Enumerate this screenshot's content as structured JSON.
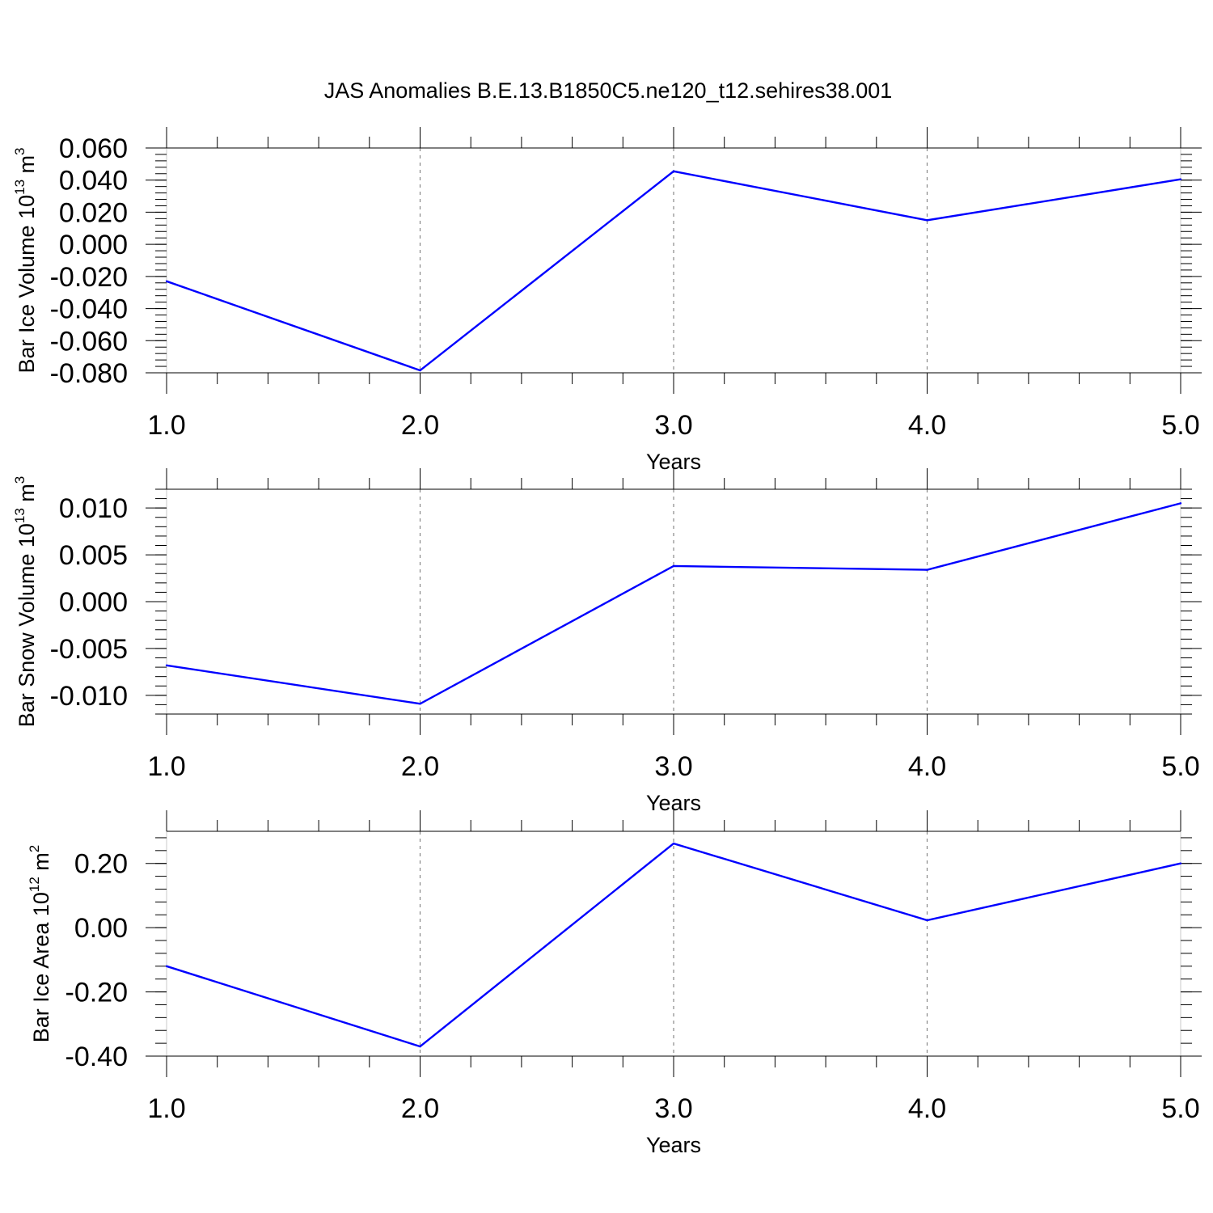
{
  "title": "JAS Anomalies B.E.13.B1850C5.ne120_t12.sehires38.001",
  "chart_data": [
    {
      "type": "line",
      "xlabel": "Years",
      "ylabel": {
        "text": "Bar Ice Volume 10",
        "exp": "13",
        "unit": " m",
        "unit_exp": "3"
      },
      "x": [
        1.0,
        2.0,
        3.0,
        4.0,
        5.0
      ],
      "x_ticks": [
        "1.0",
        "2.0",
        "3.0",
        "4.0",
        "5.0"
      ],
      "xlim": [
        1.0,
        5.0
      ],
      "ylim": [
        -0.08,
        0.06
      ],
      "y_ticks": [
        0.06,
        0.04,
        0.02,
        0.0,
        -0.02,
        -0.04,
        -0.06,
        -0.08
      ],
      "y_tick_labels": [
        "0.060",
        "0.040",
        "0.020",
        "0.000",
        "-0.020",
        "-0.040",
        "-0.060",
        "-0.080"
      ],
      "series": [
        {
          "values": [
            -0.023,
            -0.0785,
            0.0455,
            0.015,
            0.0405
          ],
          "color": "#0000ff"
        }
      ],
      "vertical_gridlines": "dashed at x ticks"
    },
    {
      "type": "line",
      "xlabel": "Years",
      "ylabel": {
        "text": "Bar Snow Volume 10",
        "exp": "13",
        "unit": " m",
        "unit_exp": "3"
      },
      "x": [
        1.0,
        2.0,
        3.0,
        4.0,
        5.0
      ],
      "x_ticks": [
        "1.0",
        "2.0",
        "3.0",
        "4.0",
        "5.0"
      ],
      "xlim": [
        1.0,
        5.0
      ],
      "ylim": [
        -0.012,
        0.012
      ],
      "y_ticks": [
        0.01,
        0.005,
        0.0,
        -0.005,
        -0.01
      ],
      "y_tick_labels": [
        "0.010",
        "0.005",
        "0.000",
        "-0.005",
        "-0.010"
      ],
      "series": [
        {
          "values": [
            -0.0068,
            -0.0109,
            0.0038,
            0.0034,
            0.0105
          ],
          "color": "#0000ff"
        }
      ],
      "vertical_gridlines": "dashed at x ticks"
    },
    {
      "type": "line",
      "xlabel": "Years",
      "ylabel": {
        "text": "Bar Ice Area 10",
        "exp": "12",
        "unit": " m",
        "unit_exp": "2"
      },
      "x": [
        1.0,
        2.0,
        3.0,
        4.0,
        5.0
      ],
      "x_ticks": [
        "1.0",
        "2.0",
        "3.0",
        "4.0",
        "5.0"
      ],
      "xlim": [
        1.0,
        5.0
      ],
      "ylim": [
        -0.4,
        0.3
      ],
      "y_ticks": [
        0.2,
        0.0,
        -0.2,
        -0.4
      ],
      "y_tick_labels": [
        "0.20",
        "0.00",
        "-0.20",
        "-0.40"
      ],
      "series": [
        {
          "values": [
            -0.12,
            -0.37,
            0.262,
            0.023,
            0.2
          ],
          "color": "#0000ff"
        }
      ],
      "vertical_gridlines": "dashed at x ticks"
    }
  ]
}
